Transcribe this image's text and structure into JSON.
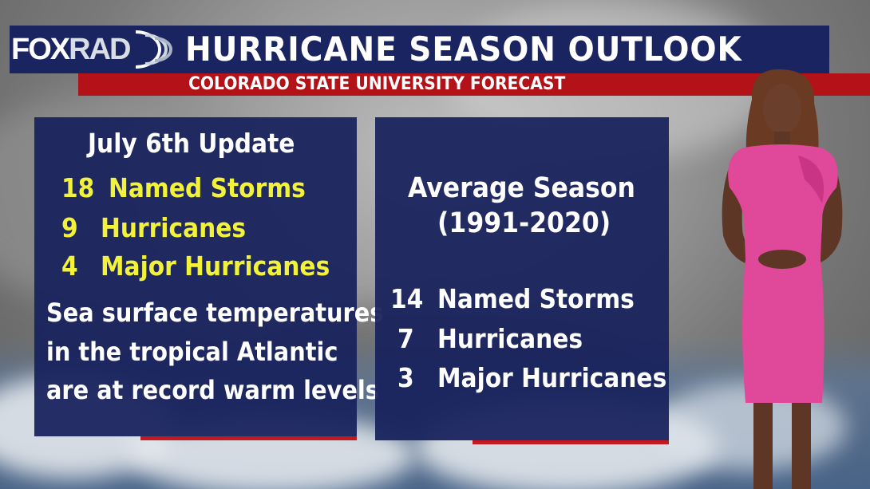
{
  "header": {
    "logo_fox": "FOX",
    "logo_rad": "RAD",
    "title": "HURRICANE SEASON OUTLOOK",
    "subtitle": "COLORADO STATE UNIVERSITY FORECAST"
  },
  "forecast": {
    "title": "July 6th Update",
    "stats": [
      {
        "value": "18",
        "label": "Named Storms"
      },
      {
        "value": "9",
        "label": "Hurricanes"
      },
      {
        "value": "4",
        "label": "Major Hurricanes"
      }
    ],
    "note_lines": [
      "Sea surface temperatures",
      "in the tropical Atlantic",
      "are at record warm levels"
    ]
  },
  "average": {
    "title": "Average Season",
    "years": "(1991-2020)",
    "stats": [
      {
        "value": "14",
        "label": "Named Storms"
      },
      {
        "value": "7",
        "label": "Hurricanes"
      },
      {
        "value": "3",
        "label": "Major Hurricanes"
      }
    ]
  },
  "colors": {
    "header_navy": "#1a2461",
    "subtitle_red": "#b31318",
    "panel_navy": "#18225c",
    "highlight_yellow": "#f3f23a",
    "dress_pink": "#e0489a"
  }
}
